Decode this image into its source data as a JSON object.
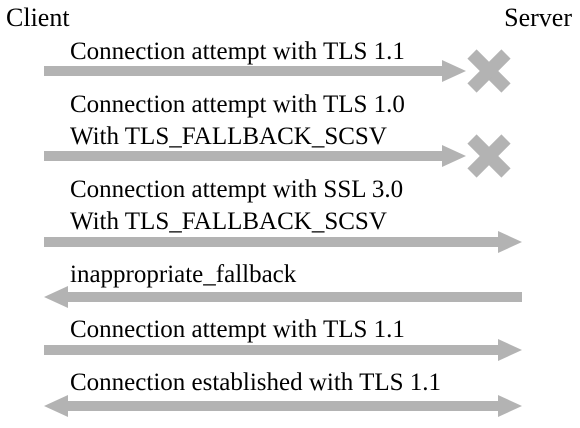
{
  "actors": {
    "client": "Client",
    "server": "Server"
  },
  "messages": [
    {
      "lines": [
        "Connection attempt with TLS 1.1"
      ],
      "direction": "to-server",
      "blocked": true
    },
    {
      "lines": [
        "Connection attempt with TLS 1.0",
        "With TLS_FALLBACK_SCSV"
      ],
      "direction": "to-server",
      "blocked": true
    },
    {
      "lines": [
        "Connection attempt with SSL 3.0",
        "With TLS_FALLBACK_SCSV"
      ],
      "direction": "to-server",
      "blocked": false
    },
    {
      "lines": [
        "inappropriate_fallback"
      ],
      "direction": "to-client",
      "blocked": false
    },
    {
      "lines": [
        "Connection attempt with TLS 1.1"
      ],
      "direction": "to-server",
      "blocked": false
    },
    {
      "lines": [
        "Connection established with TLS 1.1"
      ],
      "direction": "both",
      "blocked": false
    }
  ],
  "colors": {
    "arrow": "#b3b3b3",
    "blocked_mark": "#b3b3b3",
    "text": "#000000"
  },
  "icons": {
    "blocked": "cross-icon"
  }
}
